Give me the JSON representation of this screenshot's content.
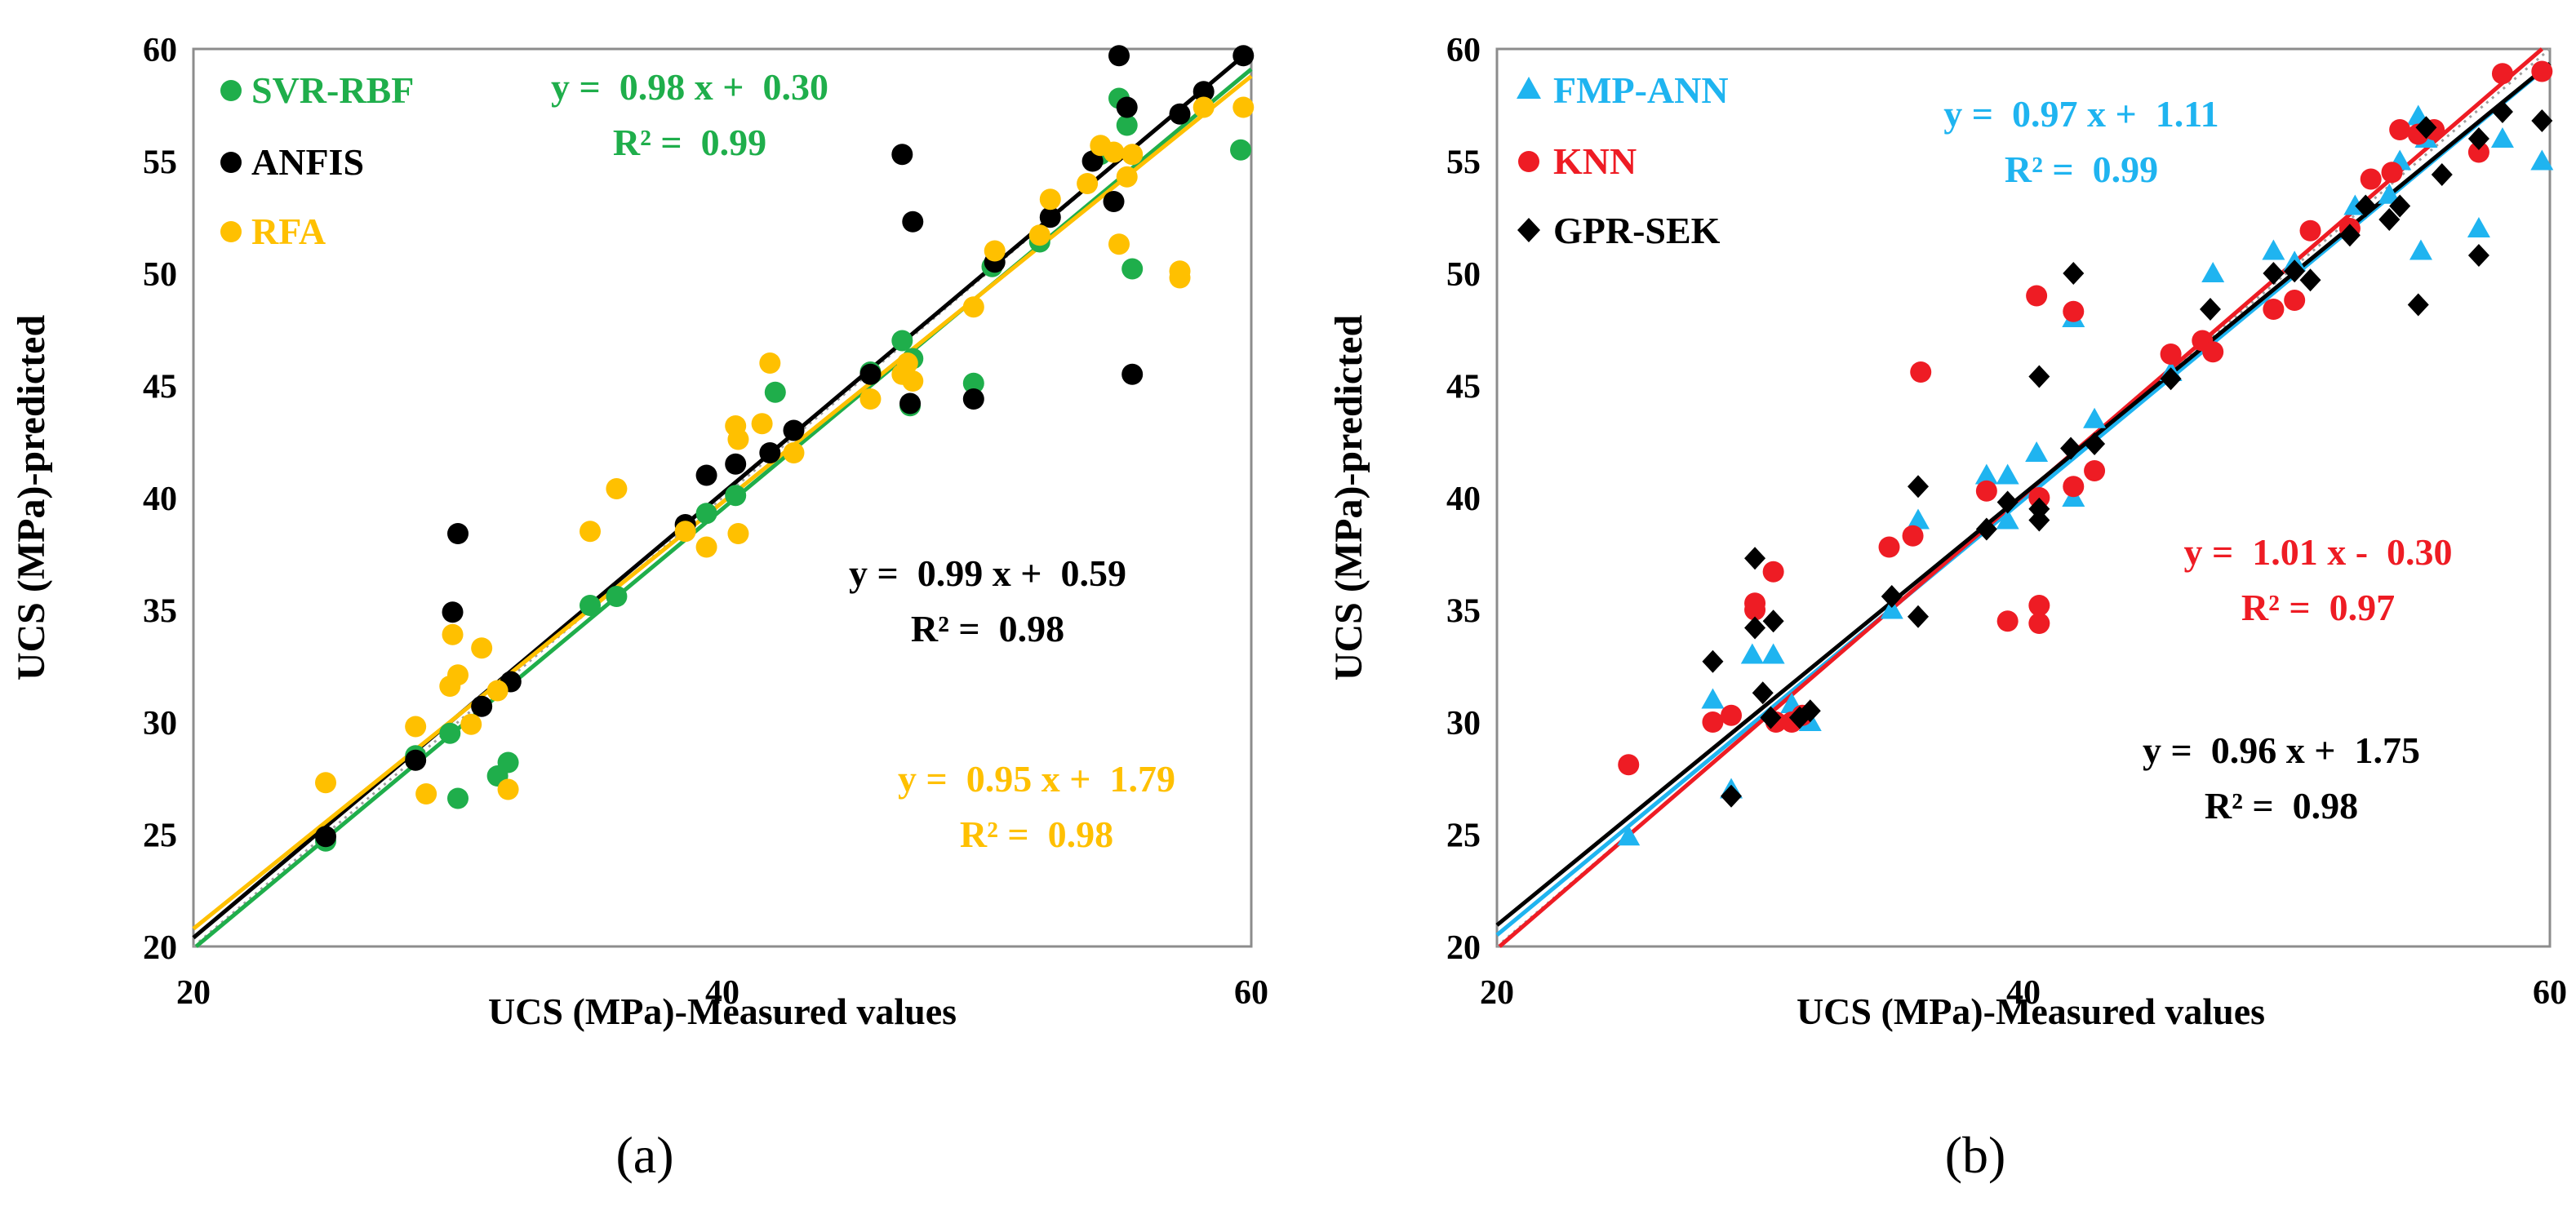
{
  "figure": {
    "panels": [
      {
        "caption": "(a)"
      },
      {
        "caption": "(b)"
      }
    ]
  },
  "chart_data": [
    {
      "type": "scatter",
      "panel": "a",
      "xlabel": "UCS (MPa)-Measured values",
      "ylabel": "UCS (MPa)-predicted",
      "xlim": [
        20,
        60
      ],
      "ylim": [
        20,
        60
      ],
      "xticks": [
        "20",
        "40",
        "60"
      ],
      "yticks": [
        "20",
        "25",
        "30",
        "35",
        "40",
        "45",
        "50",
        "55",
        "60"
      ],
      "grid": false,
      "legend_position": "top-left",
      "reference_line": {
        "style": "dotted",
        "color": "#9e9e9e",
        "from": [
          20,
          20
        ],
        "to": [
          60,
          60
        ]
      },
      "series": [
        {
          "name": "SVR-RBF",
          "marker": "circle",
          "color": "#1fae4b",
          "fit": {
            "slope": 0.98,
            "intercept": 0.3
          },
          "equation": "y =  0.98 x +  0.30",
          "r2_label": "R² =  0.99",
          "points": [
            [
              25,
              24.7
            ],
            [
              28.4,
              28.5
            ],
            [
              29.7,
              29.5
            ],
            [
              30,
              26.6
            ],
            [
              31.5,
              27.6
            ],
            [
              31.9,
              28.2
            ],
            [
              35,
              35.2
            ],
            [
              36,
              35.6
            ],
            [
              39.4,
              39.3
            ],
            [
              40.5,
              40.1
            ],
            [
              42,
              44.7
            ],
            [
              45.6,
              45.6
            ],
            [
              46.8,
              47
            ],
            [
              47.2,
              46.2
            ],
            [
              47.1,
              44.1
            ],
            [
              49.5,
              45.1
            ],
            [
              50.2,
              50.3
            ],
            [
              52,
              51.4
            ],
            [
              54.3,
              55.3
            ],
            [
              55,
              57.8
            ],
            [
              55.3,
              56.6
            ],
            [
              55.5,
              50.2
            ],
            [
              59.6,
              55.5
            ]
          ]
        },
        {
          "name": "ANFIS",
          "marker": "circle",
          "color": "#000000",
          "fit": {
            "slope": 0.99,
            "intercept": 0.59
          },
          "equation": "y =  0.99 x +  0.59",
          "r2_label": "R² =  0.98",
          "points": [
            [
              25,
              24.9
            ],
            [
              28.4,
              28.3
            ],
            [
              29.8,
              34.9
            ],
            [
              30,
              38.4
            ],
            [
              30.9,
              30.7
            ],
            [
              32,
              31.8
            ],
            [
              38.6,
              38.8
            ],
            [
              39.4,
              41
            ],
            [
              40.5,
              41.5
            ],
            [
              41.8,
              42
            ],
            [
              42.7,
              43
            ],
            [
              45.6,
              45.5
            ],
            [
              46.8,
              55.3
            ],
            [
              47.2,
              52.3
            ],
            [
              47.1,
              44.2
            ],
            [
              49.5,
              44.4
            ],
            [
              50.3,
              50.5
            ],
            [
              52.4,
              52.5
            ],
            [
              54,
              55
            ],
            [
              54.8,
              53.2
            ],
            [
              55,
              59.7
            ],
            [
              55.3,
              57.4
            ],
            [
              55.5,
              45.5
            ],
            [
              57.3,
              57.1
            ],
            [
              58.2,
              58.1
            ],
            [
              59.7,
              59.7
            ]
          ]
        },
        {
          "name": "RFA",
          "marker": "circle",
          "color": "#ffc000",
          "fit": {
            "slope": 0.95,
            "intercept": 1.79
          },
          "equation": "y =  0.95 x +  1.79",
          "r2_label": "R² =  0.98",
          "points": [
            [
              25,
              27.3
            ],
            [
              28.4,
              29.8
            ],
            [
              28.8,
              26.8
            ],
            [
              29.7,
              31.6
            ],
            [
              29.8,
              33.9
            ],
            [
              30,
              32.1
            ],
            [
              30.5,
              29.9
            ],
            [
              30.9,
              33.3
            ],
            [
              31.5,
              31.4
            ],
            [
              31.9,
              27
            ],
            [
              35,
              38.5
            ],
            [
              36,
              40.4
            ],
            [
              38.6,
              38.5
            ],
            [
              39.4,
              37.8
            ],
            [
              40.5,
              43.2
            ],
            [
              40.6,
              42.6
            ],
            [
              40.6,
              38.4
            ],
            [
              41.5,
              43.3
            ],
            [
              41.8,
              46
            ],
            [
              42.7,
              42
            ],
            [
              45.6,
              44.4
            ],
            [
              46.8,
              45.5
            ],
            [
              47,
              46
            ],
            [
              47.2,
              45.2
            ],
            [
              49.5,
              48.5
            ],
            [
              50.3,
              51
            ],
            [
              52,
              51.7
            ],
            [
              52.4,
              53.3
            ],
            [
              53.8,
              54
            ],
            [
              54.3,
              55.7
            ],
            [
              54.8,
              55.4
            ],
            [
              55,
              51.3
            ],
            [
              55.3,
              54.3
            ],
            [
              55.5,
              55.3
            ],
            [
              57.3,
              50.1
            ],
            [
              57.3,
              49.8
            ],
            [
              58.2,
              57.4
            ],
            [
              59.7,
              57.4
            ]
          ]
        }
      ]
    },
    {
      "type": "scatter",
      "panel": "b",
      "xlabel": "UCS (MPa)-Measured values",
      "ylabel": "UCS (MPa)-predicted",
      "xlim": [
        20,
        60
      ],
      "ylim": [
        20,
        60
      ],
      "xticks": [
        "20",
        "40",
        "60"
      ],
      "yticks": [
        "20",
        "25",
        "30",
        "35",
        "40",
        "45",
        "50",
        "55",
        "60"
      ],
      "grid": false,
      "legend_position": "top-left",
      "reference_line": {
        "style": "dotted",
        "color": "#9e9e9e",
        "from": [
          20,
          20
        ],
        "to": [
          60,
          60
        ]
      },
      "series": [
        {
          "name": "FMP-ANN",
          "marker": "triangle",
          "color": "#1fb4f0",
          "fit": {
            "slope": 0.97,
            "intercept": 1.11
          },
          "equation": "y =  0.97 x +  1.11",
          "r2_label": "R² =  0.99",
          "points": [
            [
              25,
              24.9
            ],
            [
              28.2,
              31
            ],
            [
              28.9,
              27
            ],
            [
              29.7,
              33
            ],
            [
              30.5,
              33
            ],
            [
              31.2,
              30.8
            ],
            [
              31.9,
              30
            ],
            [
              35,
              35
            ],
            [
              36,
              39
            ],
            [
              38.6,
              41
            ],
            [
              39.4,
              41
            ],
            [
              39.4,
              39
            ],
            [
              40.5,
              42
            ],
            [
              41.9,
              48
            ],
            [
              41.9,
              40
            ],
            [
              42.7,
              43.5
            ],
            [
              45.6,
              45.6
            ],
            [
              47.2,
              50
            ],
            [
              49.5,
              51
            ],
            [
              50.3,
              50.5
            ],
            [
              52.6,
              53
            ],
            [
              53.9,
              53.5
            ],
            [
              54.3,
              55
            ],
            [
              55,
              57
            ],
            [
              55.1,
              51
            ],
            [
              55.3,
              56
            ],
            [
              57.3,
              52
            ],
            [
              58.2,
              56
            ],
            [
              59.7,
              55
            ]
          ]
        },
        {
          "name": "KNN",
          "marker": "circle",
          "color": "#ee1c24",
          "fit": {
            "slope": 1.01,
            "intercept": -0.3
          },
          "equation": "y =  1.01 x -  0.30",
          "r2_label": "R² =  0.97",
          "points": [
            [
              25,
              28.1
            ],
            [
              28.2,
              30
            ],
            [
              28.9,
              30.3
            ],
            [
              29.8,
              35
            ],
            [
              29.8,
              35.3
            ],
            [
              30.5,
              36.7
            ],
            [
              30.6,
              30
            ],
            [
              31.2,
              30
            ],
            [
              31.6,
              30.3
            ],
            [
              34.9,
              37.8
            ],
            [
              35.8,
              38.3
            ],
            [
              36.1,
              45.6
            ],
            [
              38.6,
              40.3
            ],
            [
              39.4,
              34.5
            ],
            [
              40.5,
              49
            ],
            [
              40.6,
              35.2
            ],
            [
              40.6,
              34.4
            ],
            [
              40.6,
              40
            ],
            [
              41.9,
              48.3
            ],
            [
              41.9,
              40.5
            ],
            [
              42.7,
              41.2
            ],
            [
              45.6,
              46.4
            ],
            [
              46.8,
              47
            ],
            [
              47.2,
              46.5
            ],
            [
              49.5,
              48.4
            ],
            [
              50.3,
              48.8
            ],
            [
              50.9,
              51.9
            ],
            [
              52.4,
              52
            ],
            [
              53.2,
              54.2
            ],
            [
              54,
              54.5
            ],
            [
              54.3,
              56.4
            ],
            [
              55,
              56.2
            ],
            [
              55.6,
              56.4
            ],
            [
              57.3,
              55.4
            ],
            [
              58.2,
              58.9
            ],
            [
              59.7,
              59
            ]
          ]
        },
        {
          "name": "GPR-SEK",
          "marker": "diamond",
          "color": "#000000",
          "fit": {
            "slope": 0.96,
            "intercept": 1.75
          },
          "equation": "y =  0.96 x +  1.75",
          "r2_label": "R² =  0.98",
          "points": [
            [
              28.2,
              32.7
            ],
            [
              28.9,
              26.7
            ],
            [
              29.8,
              37.3
            ],
            [
              29.8,
              34.2
            ],
            [
              30.1,
              31.3
            ],
            [
              30.4,
              30.2
            ],
            [
              30.5,
              34.5
            ],
            [
              31.5,
              30.2
            ],
            [
              31.9,
              30.5
            ],
            [
              35,
              35.6
            ],
            [
              36,
              34.7
            ],
            [
              36,
              40.5
            ],
            [
              38.6,
              38.6
            ],
            [
              39.4,
              39.8
            ],
            [
              40.6,
              45.4
            ],
            [
              40.6,
              39.5
            ],
            [
              40.6,
              39
            ],
            [
              41.8,
              42.2
            ],
            [
              41.9,
              50
            ],
            [
              42.7,
              42.4
            ],
            [
              45.6,
              45.3
            ],
            [
              47.1,
              48.4
            ],
            [
              49.5,
              50
            ],
            [
              50.3,
              50.1
            ],
            [
              50.9,
              49.7
            ],
            [
              52.4,
              51.7
            ],
            [
              53,
              53
            ],
            [
              53.9,
              52.4
            ],
            [
              54.3,
              53
            ],
            [
              55,
              48.6
            ],
            [
              55.3,
              56.5
            ],
            [
              55.9,
              54.4
            ],
            [
              57.3,
              50.8
            ],
            [
              57.3,
              56
            ],
            [
              58.2,
              57.2
            ],
            [
              59.7,
              56.8
            ]
          ]
        }
      ]
    }
  ]
}
